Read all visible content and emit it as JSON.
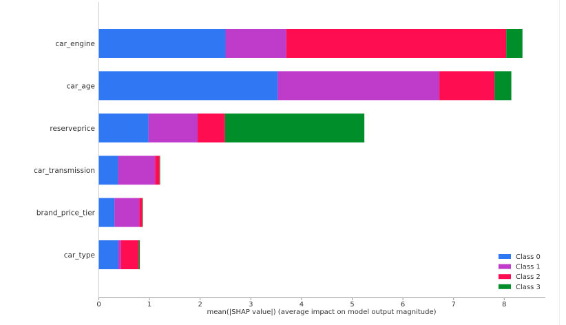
{
  "chart_data": {
    "type": "bar",
    "orientation": "horizontal",
    "stacked": true,
    "categories": [
      "car_engine",
      "car_age",
      "reserveprice",
      "car_transmission",
      "brand_price_tier",
      "car_type"
    ],
    "series": [
      {
        "name": "Class 0",
        "color": "#3077f3",
        "values": [
          2.5,
          3.53,
          0.98,
          0.38,
          0.31,
          0.38
        ]
      },
      {
        "name": "Class 1",
        "color": "#bf3cca",
        "values": [
          1.2,
          3.19,
          0.97,
          0.73,
          0.49,
          0.06
        ]
      },
      {
        "name": "Class 2",
        "color": "#ff0d50",
        "values": [
          4.34,
          1.09,
          0.54,
          0.09,
          0.06,
          0.35
        ]
      },
      {
        "name": "Class 3",
        "color": "#008e2a",
        "values": [
          0.32,
          0.33,
          2.75,
          0.01,
          0.01,
          0.02
        ]
      }
    ],
    "xlabel": "mean(|SHAP value|) (average impact on model output magnitude)",
    "xlim": [
      0,
      8.8
    ],
    "xticks": [
      "0",
      "1",
      "2",
      "3",
      "4",
      "5",
      "6",
      "7",
      "8"
    ],
    "legend_position": "bottom-right",
    "grid": false
  }
}
